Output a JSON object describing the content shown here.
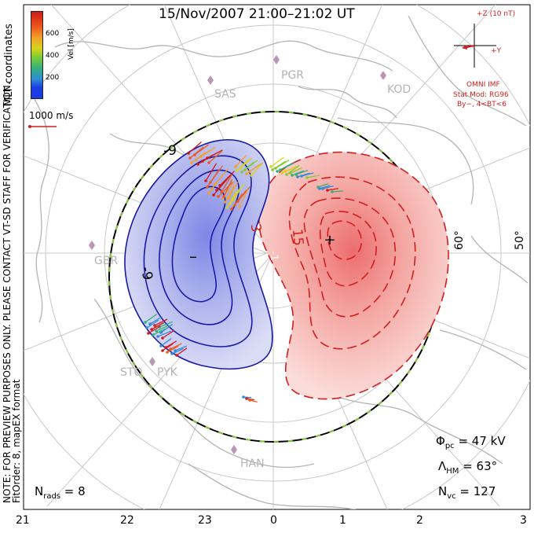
{
  "header": {
    "title": "15/Nov/2007 21:00–21:02 UT"
  },
  "colorbar": {
    "label": "Vel [m/s]",
    "ticks": [
      "600",
      "400",
      "200"
    ]
  },
  "side_notes": {
    "coordinates": "MLT coordinates",
    "warning": "NOTE: FOR PREVIEW PURPOSES ONLY. PLEASE CONTACT VT-SD STAFF FOR VERIFICATION.",
    "fit": "FitOrder: 8, mapEX format"
  },
  "scale_vector": {
    "label": "1000 m/s"
  },
  "imf_panel": {
    "z_label": "+Z (10 nT)",
    "y_label": "+Y",
    "source": "OMNI IMF",
    "model": "Stat Mod: RG96",
    "condition": "By−, 4<BT<6"
  },
  "stations": [
    "PGR",
    "KOD",
    "SAS",
    "GBR",
    "STO",
    "PYK",
    "HAN"
  ],
  "latitude_labels": [
    "60°",
    "50°"
  ],
  "contour_labels": [
    "-9",
    "-9",
    "3",
    "15",
    "-1",
    "+"
  ],
  "stats": {
    "n_rads_label": "N",
    "n_rads_sub": "rads",
    "n_rads_value": " = 8",
    "phi_label": "Φ",
    "phi_sub": "pc",
    "phi_value": " = 47 kV",
    "lambda_label": "Λ",
    "lambda_sub": "HM",
    "lambda_value": " = 63°",
    "nvc_label": "N",
    "nvc_sub": "vc",
    "nvc_value": " = 127"
  },
  "mlt_axis": [
    "21",
    "22",
    "23",
    "0",
    "1",
    "2",
    "3"
  ],
  "colors": {
    "negative_cell": "#1a1aa8",
    "positive_cell": "#d21e1e",
    "grid": "#c8c8c8",
    "coast": "#b4b4b4"
  }
}
